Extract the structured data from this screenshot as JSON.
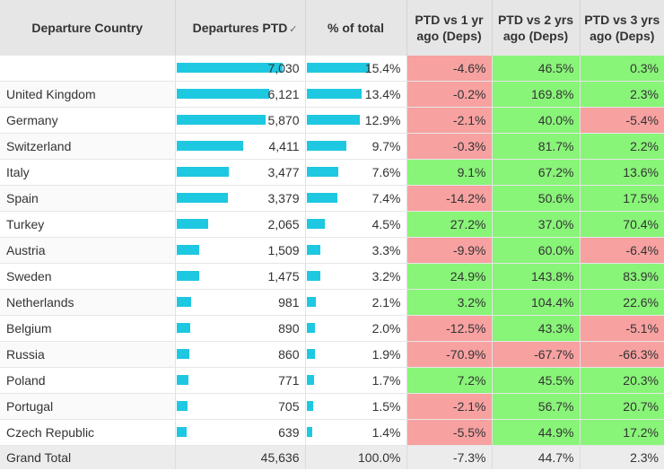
{
  "headers": {
    "country": "Departure Country",
    "departures": "Departures PTD",
    "pct_total": "% of total",
    "vs1": "PTD vs 1 yr ago (Deps)",
    "vs2": "PTD vs 2 yrs ago (Deps)",
    "vs3": "PTD vs 3 yrs ago (Deps)",
    "sort_icon": "sort-indicator-icon",
    "sort_glyph": "✓"
  },
  "max_departures": 7030,
  "max_pct": 15.4,
  "colors": {
    "bar": "#1ec8e0",
    "positive": "#88f478",
    "negative": "#f7a1a1",
    "header_bg": "#e6e6e6",
    "total_bg": "#ececec"
  },
  "rows": [
    {
      "country": "",
      "departures": 7030,
      "departures_label": "7,030",
      "pct": 15.4,
      "pct_label": "15.4%",
      "vs1": -4.6,
      "vs1_label": "-4.6%",
      "vs2": 46.5,
      "vs2_label": "46.5%",
      "vs3": 0.3,
      "vs3_label": "0.3%"
    },
    {
      "country": "United Kingdom",
      "departures": 6121,
      "departures_label": "6,121",
      "pct": 13.4,
      "pct_label": "13.4%",
      "vs1": -0.2,
      "vs1_label": "-0.2%",
      "vs2": 169.8,
      "vs2_label": "169.8%",
      "vs3": 2.3,
      "vs3_label": "2.3%"
    },
    {
      "country": "Germany",
      "departures": 5870,
      "departures_label": "5,870",
      "pct": 12.9,
      "pct_label": "12.9%",
      "vs1": -2.1,
      "vs1_label": "-2.1%",
      "vs2": 40.0,
      "vs2_label": "40.0%",
      "vs3": -5.4,
      "vs3_label": "-5.4%"
    },
    {
      "country": "Switzerland",
      "departures": 4411,
      "departures_label": "4,411",
      "pct": 9.7,
      "pct_label": "9.7%",
      "vs1": -0.3,
      "vs1_label": "-0.3%",
      "vs2": 81.7,
      "vs2_label": "81.7%",
      "vs3": 2.2,
      "vs3_label": "2.2%"
    },
    {
      "country": "Italy",
      "departures": 3477,
      "departures_label": "3,477",
      "pct": 7.6,
      "pct_label": "7.6%",
      "vs1": 9.1,
      "vs1_label": "9.1%",
      "vs2": 67.2,
      "vs2_label": "67.2%",
      "vs3": 13.6,
      "vs3_label": "13.6%"
    },
    {
      "country": "Spain",
      "departures": 3379,
      "departures_label": "3,379",
      "pct": 7.4,
      "pct_label": "7.4%",
      "vs1": -14.2,
      "vs1_label": "-14.2%",
      "vs2": 50.6,
      "vs2_label": "50.6%",
      "vs3": 17.5,
      "vs3_label": "17.5%"
    },
    {
      "country": "Turkey",
      "departures": 2065,
      "departures_label": "2,065",
      "pct": 4.5,
      "pct_label": "4.5%",
      "vs1": 27.2,
      "vs1_label": "27.2%",
      "vs2": 37.0,
      "vs2_label": "37.0%",
      "vs3": 70.4,
      "vs3_label": "70.4%"
    },
    {
      "country": "Austria",
      "departures": 1509,
      "departures_label": "1,509",
      "pct": 3.3,
      "pct_label": "3.3%",
      "vs1": -9.9,
      "vs1_label": "-9.9%",
      "vs2": 60.0,
      "vs2_label": "60.0%",
      "vs3": -6.4,
      "vs3_label": "-6.4%"
    },
    {
      "country": "Sweden",
      "departures": 1475,
      "departures_label": "1,475",
      "pct": 3.2,
      "pct_label": "3.2%",
      "vs1": 24.9,
      "vs1_label": "24.9%",
      "vs2": 143.8,
      "vs2_label": "143.8%",
      "vs3": 83.9,
      "vs3_label": "83.9%"
    },
    {
      "country": "Netherlands",
      "departures": 981,
      "departures_label": "981",
      "pct": 2.1,
      "pct_label": "2.1%",
      "vs1": 3.2,
      "vs1_label": "3.2%",
      "vs2": 104.4,
      "vs2_label": "104.4%",
      "vs3": 22.6,
      "vs3_label": "22.6%"
    },
    {
      "country": "Belgium",
      "departures": 890,
      "departures_label": "890",
      "pct": 2.0,
      "pct_label": "2.0%",
      "vs1": -12.5,
      "vs1_label": "-12.5%",
      "vs2": 43.3,
      "vs2_label": "43.3%",
      "vs3": -5.1,
      "vs3_label": "-5.1%"
    },
    {
      "country": "Russia",
      "departures": 860,
      "departures_label": "860",
      "pct": 1.9,
      "pct_label": "1.9%",
      "vs1": -70.9,
      "vs1_label": "-70.9%",
      "vs2": -67.7,
      "vs2_label": "-67.7%",
      "vs3": -66.3,
      "vs3_label": "-66.3%"
    },
    {
      "country": "Poland",
      "departures": 771,
      "departures_label": "771",
      "pct": 1.7,
      "pct_label": "1.7%",
      "vs1": 7.2,
      "vs1_label": "7.2%",
      "vs2": 45.5,
      "vs2_label": "45.5%",
      "vs3": 20.3,
      "vs3_label": "20.3%"
    },
    {
      "country": "Portugal",
      "departures": 705,
      "departures_label": "705",
      "pct": 1.5,
      "pct_label": "1.5%",
      "vs1": -2.1,
      "vs1_label": "-2.1%",
      "vs2": 56.7,
      "vs2_label": "56.7%",
      "vs3": 20.7,
      "vs3_label": "20.7%"
    },
    {
      "country": "Czech Republic",
      "departures": 639,
      "departures_label": "639",
      "pct": 1.4,
      "pct_label": "1.4%",
      "vs1": -5.5,
      "vs1_label": "-5.5%",
      "vs2": 44.9,
      "vs2_label": "44.9%",
      "vs3": 17.2,
      "vs3_label": "17.2%"
    }
  ],
  "total": {
    "label": "Grand Total",
    "departures_label": "45,636",
    "pct_label": "100.0%",
    "vs1_label": "-7.3%",
    "vs2_label": "44.7%",
    "vs3_label": "2.3%"
  }
}
